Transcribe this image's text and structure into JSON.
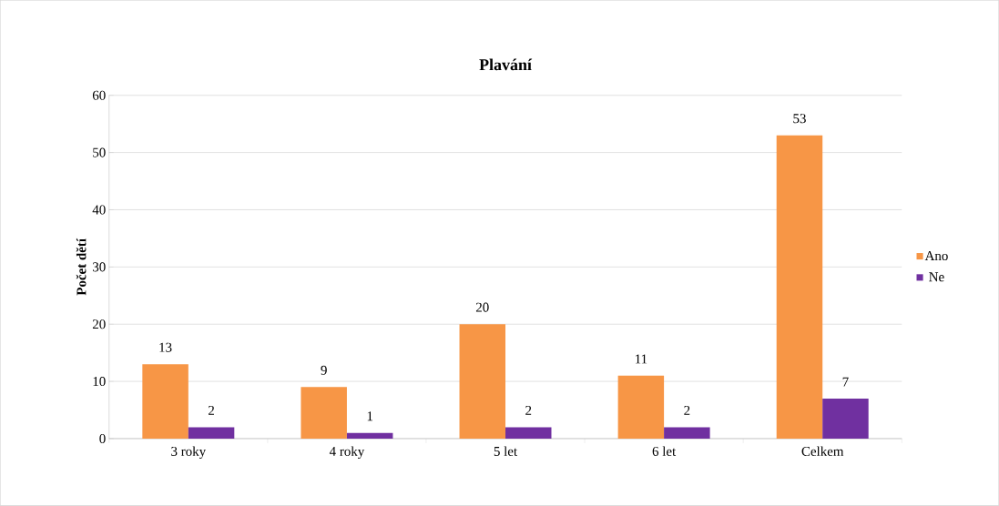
{
  "chart_data": {
    "type": "bar",
    "title": "Plavání",
    "ylabel": "Počet dětí",
    "categories": [
      "3 roky",
      "4 roky",
      "5 let",
      "6 let",
      "Celkem"
    ],
    "series": [
      {
        "name": "Ano",
        "color": "#f79646",
        "values": [
          13,
          9,
          20,
          11,
          53
        ]
      },
      {
        "name": "Ne",
        "color": "#7030a0",
        "values": [
          2,
          1,
          2,
          2,
          7
        ]
      }
    ],
    "ylim": [
      0,
      60
    ],
    "yticks": [
      0,
      10,
      20,
      30,
      40,
      50,
      60
    ],
    "grid": "y",
    "legend": "right",
    "data_labels": true
  }
}
